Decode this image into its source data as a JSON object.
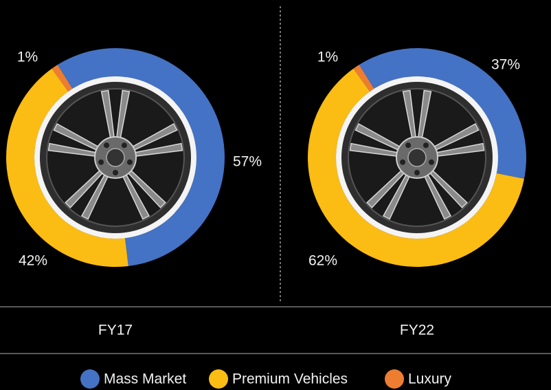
{
  "chart_data": [
    {
      "type": "donut",
      "title": "FY17",
      "categories": [
        "Mass Market",
        "Premium Vehicles",
        "Luxury"
      ],
      "values": [
        57,
        42,
        1
      ],
      "value_labels": [
        "57%",
        "42%",
        "1%"
      ],
      "colors": [
        "#4472c4",
        "#fbbc14",
        "#ed7d31"
      ]
    },
    {
      "type": "donut",
      "title": "FY22",
      "categories": [
        "Mass Market",
        "Premium Vehicles",
        "Luxury"
      ],
      "values": [
        37,
        62,
        1
      ],
      "value_labels": [
        "37%",
        "62%",
        "1%"
      ],
      "colors": [
        "#4472c4",
        "#fbbc14",
        "#ed7d31"
      ]
    }
  ]
}
